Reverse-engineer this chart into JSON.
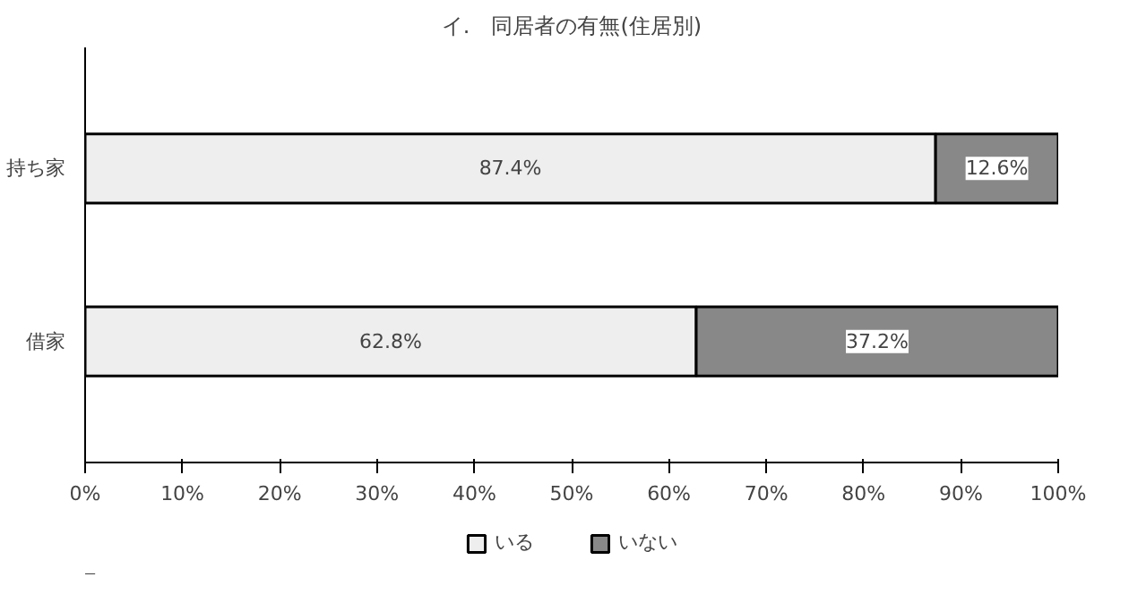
{
  "chart_data": {
    "type": "bar",
    "orientation": "horizontal",
    "stacked": true,
    "title": "イ.　同居者の有無(住居別)",
    "categories": [
      "持ち家",
      "借家"
    ],
    "series": [
      {
        "name": "いる",
        "color": "#eeeeee",
        "values": [
          87.4,
          62.8
        ],
        "value_labels": [
          "87.4%",
          "62.8%"
        ]
      },
      {
        "name": "いない",
        "color": "#888888",
        "values": [
          12.6,
          37.2
        ],
        "value_labels": [
          "12.6%",
          "37.2%"
        ]
      }
    ],
    "xlim": [
      0,
      100
    ],
    "xticks": [
      {
        "value": 0,
        "label": "0%"
      },
      {
        "value": 10,
        "label": "10%"
      },
      {
        "value": 20,
        "label": "20%"
      },
      {
        "value": 30,
        "label": "30%"
      },
      {
        "value": 40,
        "label": "40%"
      },
      {
        "value": 50,
        "label": "50%"
      },
      {
        "value": 60,
        "label": "60%"
      },
      {
        "value": 70,
        "label": "70%"
      },
      {
        "value": 80,
        "label": "80%"
      },
      {
        "value": 90,
        "label": "90%"
      },
      {
        "value": 100,
        "label": "100%"
      }
    ],
    "grid": false,
    "legend": "bottom"
  }
}
